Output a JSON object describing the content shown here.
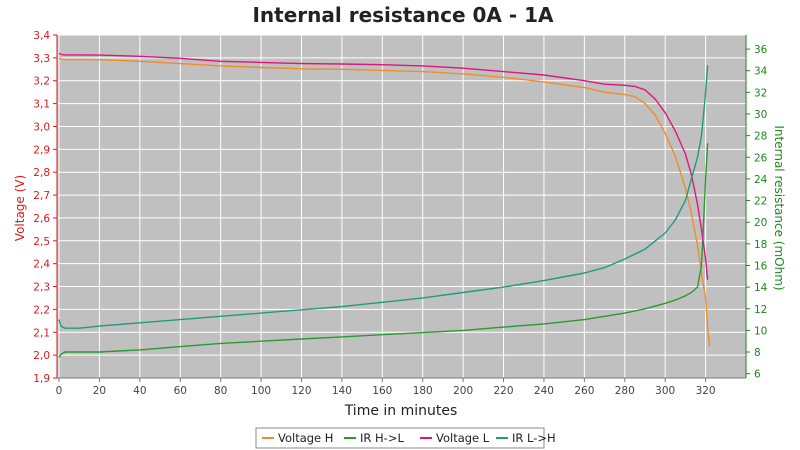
{
  "colors": {
    "voltage_h": "#f28c28",
    "ir_h_to_l": "#2c9a2c",
    "voltage_l": "#e0157a",
    "ir_l_to_h": "#1f9c78",
    "left_axis": "#d81b1b",
    "right_axis": "#1a8a1a",
    "plot_bg": "#c0c0c0",
    "grid": "#ffffff"
  },
  "chart_data": {
    "type": "line",
    "title": "Internal resistance  0A - 1A",
    "xlabel": "Time in minutes",
    "ylabel_left": "Voltage (V)",
    "ylabel_right": "Internal resistance (mOhm)",
    "xlim": [
      -1,
      340
    ],
    "ylim_left": [
      1.9,
      3.4
    ],
    "ylim_right": [
      5.6,
      37.3
    ],
    "x_ticks": [
      "0",
      "20",
      "40",
      "60",
      "80",
      "100",
      "120",
      "140",
      "160",
      "180",
      "200",
      "220",
      "240",
      "260",
      "280",
      "300",
      "320"
    ],
    "y_left_ticks": [
      "1,9",
      "2,0",
      "2,1",
      "2,2",
      "2,3",
      "2,4",
      "2,5",
      "2,6",
      "2,7",
      "2,8",
      "2,9",
      "3,0",
      "3,1",
      "3,2",
      "3,3",
      "3,4"
    ],
    "y_right_ticks": [
      "6",
      "8",
      "10",
      "12",
      "14",
      "16",
      "18",
      "20",
      "22",
      "24",
      "26",
      "28",
      "30",
      "32",
      "34",
      "36"
    ],
    "grid": true,
    "legend_position": "bottom",
    "series": [
      {
        "name": "Voltage H",
        "axis": "left",
        "x": [
          0,
          1,
          3,
          10,
          20,
          40,
          60,
          80,
          100,
          120,
          140,
          160,
          180,
          200,
          220,
          240,
          260,
          270,
          280,
          285,
          290,
          295,
          300,
          305,
          310,
          313,
          316,
          318,
          320,
          321,
          322
        ],
        "y": [
          3.3,
          3.295,
          3.293,
          3.293,
          3.292,
          3.285,
          3.275,
          3.265,
          3.258,
          3.252,
          3.25,
          3.245,
          3.24,
          3.23,
          3.215,
          3.195,
          3.17,
          3.15,
          3.14,
          3.13,
          3.1,
          3.05,
          2.97,
          2.87,
          2.73,
          2.62,
          2.48,
          2.36,
          2.25,
          2.12,
          2.04
        ]
      },
      {
        "name": "IR H->L",
        "axis": "right",
        "x": [
          0,
          1,
          3,
          10,
          20,
          40,
          60,
          80,
          100,
          120,
          140,
          160,
          180,
          200,
          220,
          240,
          260,
          270,
          280,
          290,
          300,
          305,
          310,
          313,
          316,
          318,
          319,
          320,
          321
        ],
        "y": [
          7.5,
          7.8,
          8.0,
          8.0,
          8.0,
          8.2,
          8.5,
          8.8,
          9.0,
          9.2,
          9.4,
          9.6,
          9.8,
          10.0,
          10.3,
          10.6,
          11.0,
          11.3,
          11.6,
          12.0,
          12.5,
          12.8,
          13.2,
          13.5,
          14.0,
          16.0,
          20.0,
          24.0,
          27.3
        ]
      },
      {
        "name": "Voltage L",
        "axis": "left",
        "x": [
          0,
          1,
          3,
          10,
          20,
          40,
          60,
          80,
          100,
          120,
          140,
          160,
          180,
          200,
          220,
          240,
          260,
          270,
          280,
          285,
          290,
          295,
          300,
          305,
          310,
          313,
          316,
          318,
          320,
          321
        ],
        "y": [
          3.32,
          3.315,
          3.313,
          3.313,
          3.312,
          3.307,
          3.298,
          3.285,
          3.28,
          3.275,
          3.273,
          3.27,
          3.265,
          3.255,
          3.24,
          3.225,
          3.2,
          3.185,
          3.18,
          3.175,
          3.16,
          3.12,
          3.06,
          2.98,
          2.88,
          2.79,
          2.66,
          2.55,
          2.42,
          2.33
        ]
      },
      {
        "name": "IR L->H",
        "axis": "right",
        "x": [
          0,
          1,
          3,
          10,
          20,
          40,
          60,
          80,
          100,
          120,
          140,
          160,
          180,
          200,
          220,
          240,
          260,
          270,
          280,
          290,
          300,
          305,
          310,
          313,
          316,
          318,
          319,
          320,
          321
        ],
        "y": [
          11.0,
          10.4,
          10.2,
          10.2,
          10.4,
          10.7,
          11.0,
          11.3,
          11.6,
          11.9,
          12.2,
          12.6,
          13.0,
          13.5,
          14.0,
          14.6,
          15.3,
          15.8,
          16.6,
          17.5,
          19.0,
          20.2,
          22.0,
          24.0,
          26.0,
          28.0,
          30.0,
          32.0,
          34.5
        ]
      }
    ]
  }
}
